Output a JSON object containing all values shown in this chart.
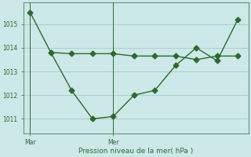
{
  "line1_x": [
    0,
    1,
    2,
    3,
    4,
    5,
    6,
    7,
    8,
    9,
    10
  ],
  "line1_y": [
    1015.5,
    1013.8,
    1013.75,
    1013.75,
    1013.75,
    1013.65,
    1013.65,
    1013.65,
    1013.5,
    1013.65,
    1013.65
  ],
  "line2_x": [
    1,
    2,
    3,
    4,
    5,
    6,
    7,
    8,
    9,
    10
  ],
  "line2_y": [
    1013.8,
    1012.2,
    1011.0,
    1011.1,
    1012.0,
    1012.2,
    1013.25,
    1014.0,
    1013.45,
    1015.2
  ],
  "line_color": "#2d6a2d",
  "bg_color": "#cce8e8",
  "grid_color": "#aacece",
  "xlabel": "Pression niveau de la mer( hPa )",
  "xtick_labels_pos": [
    0,
    4
  ],
  "xtick_labels": [
    "Mar",
    "Mer"
  ],
  "ytick_vals": [
    1011,
    1012,
    1013,
    1014,
    1015
  ],
  "ytick_labels": [
    "1011",
    "1012",
    "1013",
    "1014",
    "1015"
  ],
  "ylim": [
    1010.4,
    1015.9
  ],
  "xlim": [
    -0.3,
    10.5
  ],
  "markersize": 3.5,
  "linewidth": 1.0
}
